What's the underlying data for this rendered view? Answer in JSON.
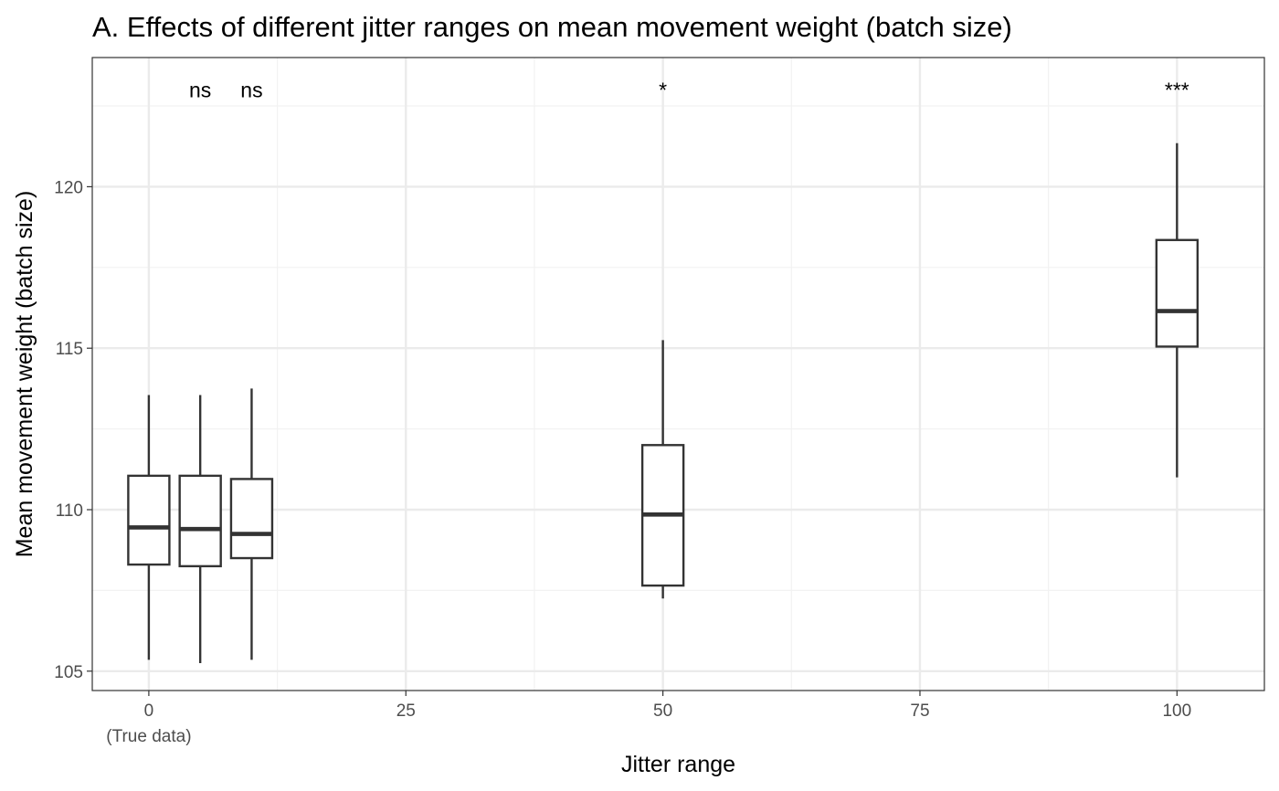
{
  "chart_data": {
    "type": "box",
    "title": "A. Effects of different jitter ranges on mean movement weight (batch size)",
    "xlabel": "Jitter range",
    "ylabel": "Mean movement weight (batch size)",
    "xlim": [
      -5.5,
      108.5
    ],
    "ylim": [
      104.4,
      124.0
    ],
    "x_ticks": [
      {
        "value": 0,
        "label": "0",
        "sublabel": "(True data)"
      },
      {
        "value": 25,
        "label": "25"
      },
      {
        "value": 50,
        "label": "50"
      },
      {
        "value": 75,
        "label": "75"
      },
      {
        "value": 100,
        "label": "100"
      }
    ],
    "y_ticks": [
      105,
      110,
      115,
      120
    ],
    "grid": true,
    "box_width": 4,
    "boxes": [
      {
        "x": 0,
        "whisker_low": 105.35,
        "q1": 108.3,
        "median": 109.45,
        "q3": 111.05,
        "whisker_high": 113.55,
        "annotation": ""
      },
      {
        "x": 5,
        "whisker_low": 105.25,
        "q1": 108.25,
        "median": 109.4,
        "q3": 111.05,
        "whisker_high": 113.55,
        "annotation": "ns"
      },
      {
        "x": 10,
        "whisker_low": 105.35,
        "q1": 108.5,
        "median": 109.25,
        "q3": 110.95,
        "whisker_high": 113.75,
        "annotation": "ns"
      },
      {
        "x": 50,
        "whisker_low": 107.25,
        "q1": 107.65,
        "median": 109.85,
        "q3": 112.0,
        "whisker_high": 115.25,
        "annotation": "*"
      },
      {
        "x": 100,
        "whisker_low": 111.0,
        "q1": 115.05,
        "median": 116.15,
        "q3": 118.35,
        "whisker_high": 121.35,
        "annotation": "***"
      }
    ],
    "annotation_y": 123.0,
    "colors": {
      "box_line": "#333333",
      "panel_border": "#333333",
      "grid_major": "#ebebeb",
      "grid_minor": "#f2f2f2",
      "tick_text": "#4d4d4d"
    }
  }
}
